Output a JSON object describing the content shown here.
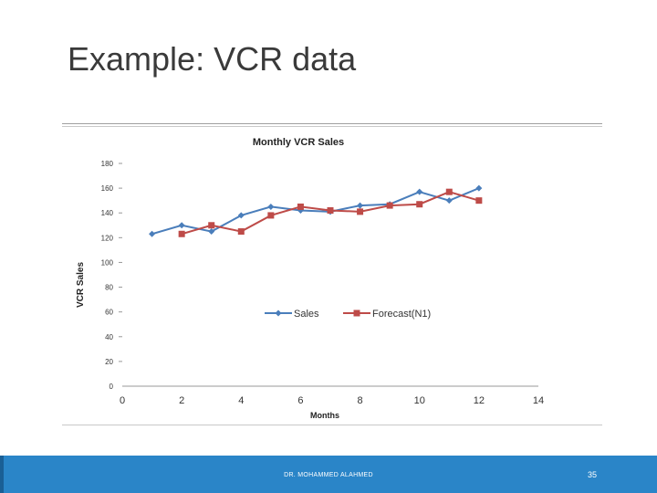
{
  "slide": {
    "title": "Example: VCR data",
    "footer_author": "DR. MOHAMMED ALAHMED",
    "page_number": "35"
  },
  "colors": {
    "sales": "#4a7ebb",
    "forecast": "#be4b48",
    "footer": "#2a85c8"
  },
  "chart_data": {
    "type": "line",
    "title": "Monthly VCR Sales",
    "xlabel": "Months",
    "ylabel": "VCR Sales",
    "xlim": [
      0,
      14
    ],
    "ylim": [
      0,
      180
    ],
    "xticks": [
      0,
      2,
      4,
      6,
      8,
      10,
      12,
      14
    ],
    "yticks": [
      0,
      20,
      40,
      60,
      80,
      100,
      120,
      140,
      160,
      180
    ],
    "grid": false,
    "legend_position": "center",
    "series": [
      {
        "name": "Sales",
        "marker": "diamond",
        "x": [
          1,
          2,
          3,
          4,
          5,
          6,
          7,
          8,
          9,
          10,
          11,
          12
        ],
        "y": [
          123,
          130,
          125,
          138,
          145,
          142,
          141,
          146,
          147,
          157,
          150,
          160
        ]
      },
      {
        "name": "Forecast(N1)",
        "marker": "square",
        "x": [
          2,
          3,
          4,
          5,
          6,
          7,
          8,
          9,
          10,
          11,
          12
        ],
        "y": [
          123,
          130,
          125,
          138,
          145,
          142,
          141,
          146,
          147,
          157,
          150
        ]
      }
    ]
  }
}
